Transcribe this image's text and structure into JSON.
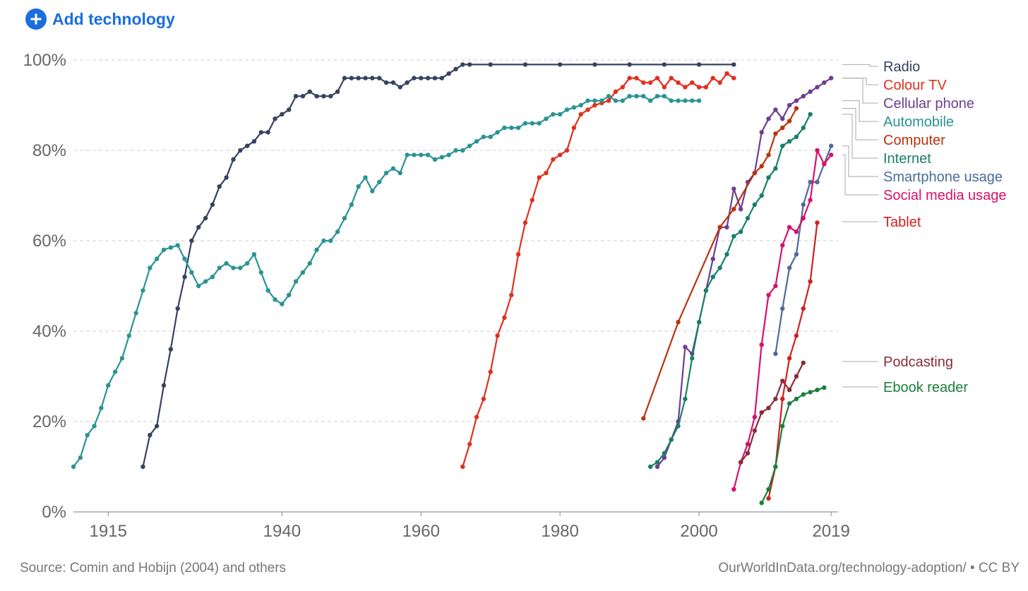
{
  "header": {
    "add_button_label": "Add technology",
    "add_icon": "plus-circle-icon"
  },
  "footer": {
    "source": "Source: Comin and Hobijn (2004) and others",
    "credit": "OurWorldInData.org/technology-adoption/ • CC BY"
  },
  "chart_data": {
    "type": "line",
    "xlim": [
      1910,
      2020
    ],
    "ylim": [
      0,
      100
    ],
    "y_ticks": [
      0,
      20,
      40,
      60,
      80,
      100
    ],
    "y_tick_labels": [
      "0%",
      "20%",
      "40%",
      "60%",
      "80%",
      "100%"
    ],
    "x_ticks": [
      1915,
      1940,
      1960,
      1980,
      2000,
      2019
    ],
    "x_tick_labels": [
      "1915",
      "1940",
      "1960",
      "1980",
      "2000",
      "2019"
    ],
    "grid": "horizontal dashed",
    "legend_position": "right",
    "series": [
      {
        "name": "Radio",
        "color": "#354360",
        "points": [
          [
            1920,
            10
          ],
          [
            1921,
            17
          ],
          [
            1922,
            19
          ],
          [
            1923,
            28
          ],
          [
            1924,
            36
          ],
          [
            1925,
            45
          ],
          [
            1926,
            52
          ],
          [
            1927,
            60
          ],
          [
            1928,
            63
          ],
          [
            1929,
            65
          ],
          [
            1930,
            68
          ],
          [
            1931,
            72
          ],
          [
            1932,
            74
          ],
          [
            1933,
            78
          ],
          [
            1934,
            80
          ],
          [
            1935,
            81
          ],
          [
            1936,
            82
          ],
          [
            1937,
            84
          ],
          [
            1938,
            84
          ],
          [
            1939,
            87
          ],
          [
            1940,
            88
          ],
          [
            1941,
            89
          ],
          [
            1942,
            92
          ],
          [
            1943,
            92
          ],
          [
            1944,
            93
          ],
          [
            1945,
            92
          ],
          [
            1946,
            92
          ],
          [
            1947,
            92
          ],
          [
            1948,
            93
          ],
          [
            1949,
            96
          ],
          [
            1950,
            96
          ],
          [
            1951,
            96
          ],
          [
            1952,
            96
          ],
          [
            1953,
            96
          ],
          [
            1954,
            96
          ],
          [
            1955,
            95
          ],
          [
            1956,
            95
          ],
          [
            1957,
            94
          ],
          [
            1958,
            95
          ],
          [
            1959,
            96
          ],
          [
            1960,
            96
          ],
          [
            1961,
            96
          ],
          [
            1962,
            96
          ],
          [
            1963,
            96
          ],
          [
            1964,
            97
          ],
          [
            1965,
            98
          ],
          [
            1966,
            99
          ],
          [
            1967,
            99
          ],
          [
            1970,
            99
          ],
          [
            1975,
            99
          ],
          [
            1980,
            99
          ],
          [
            1985,
            99
          ],
          [
            1990,
            99
          ],
          [
            1995,
            99
          ],
          [
            2000,
            99
          ],
          [
            2005,
            99
          ]
        ]
      },
      {
        "name": "Colour TV",
        "color": "#e0301e",
        "points": [
          [
            1966,
            10
          ],
          [
            1967,
            15
          ],
          [
            1968,
            21
          ],
          [
            1969,
            25
          ],
          [
            1970,
            31
          ],
          [
            1971,
            39
          ],
          [
            1972,
            43
          ],
          [
            1973,
            48
          ],
          [
            1974,
            57
          ],
          [
            1975,
            64
          ],
          [
            1976,
            69
          ],
          [
            1977,
            74
          ],
          [
            1978,
            75
          ],
          [
            1979,
            78
          ],
          [
            1980,
            79
          ],
          [
            1981,
            80
          ],
          [
            1982,
            85
          ],
          [
            1983,
            88
          ],
          [
            1984,
            89
          ],
          [
            1985,
            90
          ],
          [
            1986,
            90.5
          ],
          [
            1987,
            91
          ],
          [
            1988,
            93
          ],
          [
            1989,
            94
          ],
          [
            1990,
            96
          ],
          [
            1991,
            96
          ],
          [
            1992,
            95
          ],
          [
            1993,
            95
          ],
          [
            1994,
            96
          ],
          [
            1995,
            94
          ],
          [
            1996,
            96
          ],
          [
            1997,
            95
          ],
          [
            1998,
            94
          ],
          [
            1999,
            95
          ],
          [
            2000,
            94
          ],
          [
            2001,
            94
          ],
          [
            2002,
            96
          ],
          [
            2003,
            95
          ],
          [
            2004,
            97
          ],
          [
            2005,
            96
          ]
        ]
      },
      {
        "name": "Cellular phone",
        "color": "#6d3e91",
        "points": [
          [
            1994,
            10
          ],
          [
            1995,
            12
          ],
          [
            1996,
            16
          ],
          [
            1997,
            20
          ],
          [
            1998,
            36.5
          ],
          [
            1999,
            35
          ],
          [
            2000,
            42
          ],
          [
            2001,
            49
          ],
          [
            2002,
            56
          ],
          [
            2003,
            63
          ],
          [
            2004,
            63
          ],
          [
            2005,
            71.5
          ],
          [
            2006,
            67
          ],
          [
            2007,
            73
          ],
          [
            2008,
            75
          ],
          [
            2009,
            84
          ],
          [
            2010,
            87
          ],
          [
            2011,
            89
          ],
          [
            2012,
            87
          ],
          [
            2013,
            90
          ],
          [
            2014,
            91
          ],
          [
            2015,
            92
          ],
          [
            2016,
            93
          ],
          [
            2017,
            94
          ],
          [
            2018,
            95
          ],
          [
            2019,
            96
          ]
        ]
      },
      {
        "name": "Automobile",
        "color": "#2a9393",
        "points": [
          [
            1910,
            10
          ],
          [
            1911,
            12
          ],
          [
            1912,
            17
          ],
          [
            1913,
            19
          ],
          [
            1914,
            23
          ],
          [
            1915,
            28
          ],
          [
            1916,
            31
          ],
          [
            1917,
            34
          ],
          [
            1918,
            39
          ],
          [
            1919,
            44
          ],
          [
            1920,
            49
          ],
          [
            1921,
            54
          ],
          [
            1922,
            56
          ],
          [
            1923,
            58
          ],
          [
            1924,
            58.5
          ],
          [
            1925,
            59
          ],
          [
            1926,
            56
          ],
          [
            1927,
            53
          ],
          [
            1928,
            50
          ],
          [
            1929,
            51
          ],
          [
            1930,
            52
          ],
          [
            1931,
            54
          ],
          [
            1932,
            55
          ],
          [
            1933,
            54
          ],
          [
            1934,
            54
          ],
          [
            1935,
            55
          ],
          [
            1936,
            57
          ],
          [
            1937,
            53
          ],
          [
            1938,
            49
          ],
          [
            1939,
            47
          ],
          [
            1940,
            46
          ],
          [
            1941,
            48
          ],
          [
            1942,
            51
          ],
          [
            1943,
            53
          ],
          [
            1944,
            55
          ],
          [
            1945,
            58
          ],
          [
            1946,
            60
          ],
          [
            1947,
            60
          ],
          [
            1948,
            62
          ],
          [
            1949,
            65
          ],
          [
            1950,
            68
          ],
          [
            1951,
            72
          ],
          [
            1952,
            74
          ],
          [
            1953,
            71
          ],
          [
            1954,
            73
          ],
          [
            1955,
            75
          ],
          [
            1956,
            76
          ],
          [
            1957,
            75
          ],
          [
            1958,
            79
          ],
          [
            1959,
            79
          ],
          [
            1960,
            79
          ],
          [
            1961,
            79
          ],
          [
            1962,
            78
          ],
          [
            1963,
            78.5
          ],
          [
            1964,
            79
          ],
          [
            1965,
            80
          ],
          [
            1966,
            80
          ],
          [
            1967,
            81
          ],
          [
            1968,
            82
          ],
          [
            1969,
            83
          ],
          [
            1970,
            83
          ],
          [
            1971,
            84
          ],
          [
            1972,
            85
          ],
          [
            1973,
            85
          ],
          [
            1974,
            85
          ],
          [
            1975,
            86
          ],
          [
            1976,
            86
          ],
          [
            1977,
            86
          ],
          [
            1978,
            87
          ],
          [
            1979,
            88
          ],
          [
            1980,
            88
          ],
          [
            1981,
            89
          ],
          [
            1982,
            89.5
          ],
          [
            1983,
            90
          ],
          [
            1984,
            91
          ],
          [
            1985,
            91
          ],
          [
            1986,
            91
          ],
          [
            1987,
            92
          ],
          [
            1988,
            91
          ],
          [
            1989,
            91
          ],
          [
            1990,
            92
          ],
          [
            1991,
            92
          ],
          [
            1992,
            92
          ],
          [
            1993,
            91
          ],
          [
            1994,
            92
          ],
          [
            1995,
            92
          ],
          [
            1996,
            91
          ],
          [
            1997,
            91
          ],
          [
            1998,
            91
          ],
          [
            1999,
            91
          ],
          [
            2000,
            91
          ]
        ]
      },
      {
        "name": "Computer",
        "color": "#b8340e",
        "points": [
          [
            1992,
            20.7
          ],
          [
            1997,
            42
          ],
          [
            2003,
            63
          ],
          [
            2005,
            67
          ],
          [
            2008,
            75
          ],
          [
            2009,
            76.5
          ],
          [
            2010,
            79
          ],
          [
            2011,
            83.7
          ],
          [
            2012,
            85
          ],
          [
            2013,
            86.5
          ],
          [
            2014,
            89.3
          ]
        ]
      },
      {
        "name": "Internet",
        "color": "#18806a",
        "points": [
          [
            1993,
            10
          ],
          [
            1994,
            11
          ],
          [
            1995,
            13
          ],
          [
            1996,
            16
          ],
          [
            1997,
            19
          ],
          [
            1998,
            25
          ],
          [
            1999,
            34
          ],
          [
            2000,
            42
          ],
          [
            2001,
            49
          ],
          [
            2002,
            52
          ],
          [
            2003,
            54
          ],
          [
            2004,
            57
          ],
          [
            2005,
            61
          ],
          [
            2006,
            62
          ],
          [
            2007,
            65
          ],
          [
            2008,
            68
          ],
          [
            2009,
            70
          ],
          [
            2010,
            74
          ],
          [
            2011,
            76
          ],
          [
            2012,
            81
          ],
          [
            2013,
            82
          ],
          [
            2014,
            83
          ],
          [
            2015,
            85
          ],
          [
            2016,
            88
          ]
        ]
      },
      {
        "name": "Smartphone usage",
        "color": "#4c6a9c",
        "points": [
          [
            2011,
            35
          ],
          [
            2012,
            45
          ],
          [
            2013,
            54
          ],
          [
            2014,
            57
          ],
          [
            2015,
            68
          ],
          [
            2016,
            73
          ],
          [
            2017,
            73
          ],
          [
            2018,
            77
          ],
          [
            2019,
            81
          ]
        ]
      },
      {
        "name": "Social media usage",
        "color": "#d8106b",
        "points": [
          [
            2005,
            5
          ],
          [
            2006,
            11
          ],
          [
            2007,
            15
          ],
          [
            2008,
            21
          ],
          [
            2009,
            37
          ],
          [
            2010,
            48
          ],
          [
            2011,
            50
          ],
          [
            2012,
            59
          ],
          [
            2013,
            63
          ],
          [
            2014,
            62
          ],
          [
            2015,
            65
          ],
          [
            2016,
            69
          ],
          [
            2017,
            80
          ],
          [
            2018,
            77
          ],
          [
            2019,
            79
          ]
        ]
      },
      {
        "name": "Tablet",
        "color": "#d01f1f",
        "points": [
          [
            2010,
            3
          ],
          [
            2011,
            10
          ],
          [
            2012,
            25
          ],
          [
            2013,
            34
          ],
          [
            2014,
            39
          ],
          [
            2015,
            45
          ],
          [
            2016,
            51
          ],
          [
            2017,
            64
          ]
        ]
      },
      {
        "name": "Podcasting",
        "color": "#8a2b3b",
        "points": [
          [
            2006,
            11
          ],
          [
            2007,
            13
          ],
          [
            2008,
            18
          ],
          [
            2009,
            22
          ],
          [
            2010,
            23
          ],
          [
            2011,
            25
          ],
          [
            2012,
            29
          ],
          [
            2013,
            27
          ],
          [
            2014,
            30
          ],
          [
            2015,
            33
          ]
        ]
      },
      {
        "name": "Ebook reader",
        "color": "#1a7f3c",
        "points": [
          [
            2009,
            2
          ],
          [
            2010,
            5
          ],
          [
            2011,
            10
          ],
          [
            2012,
            19
          ],
          [
            2013,
            24
          ],
          [
            2014,
            25
          ],
          [
            2015,
            26
          ],
          [
            2016,
            26.5
          ],
          [
            2017,
            27
          ],
          [
            2018,
            27.5
          ]
        ]
      }
    ]
  }
}
